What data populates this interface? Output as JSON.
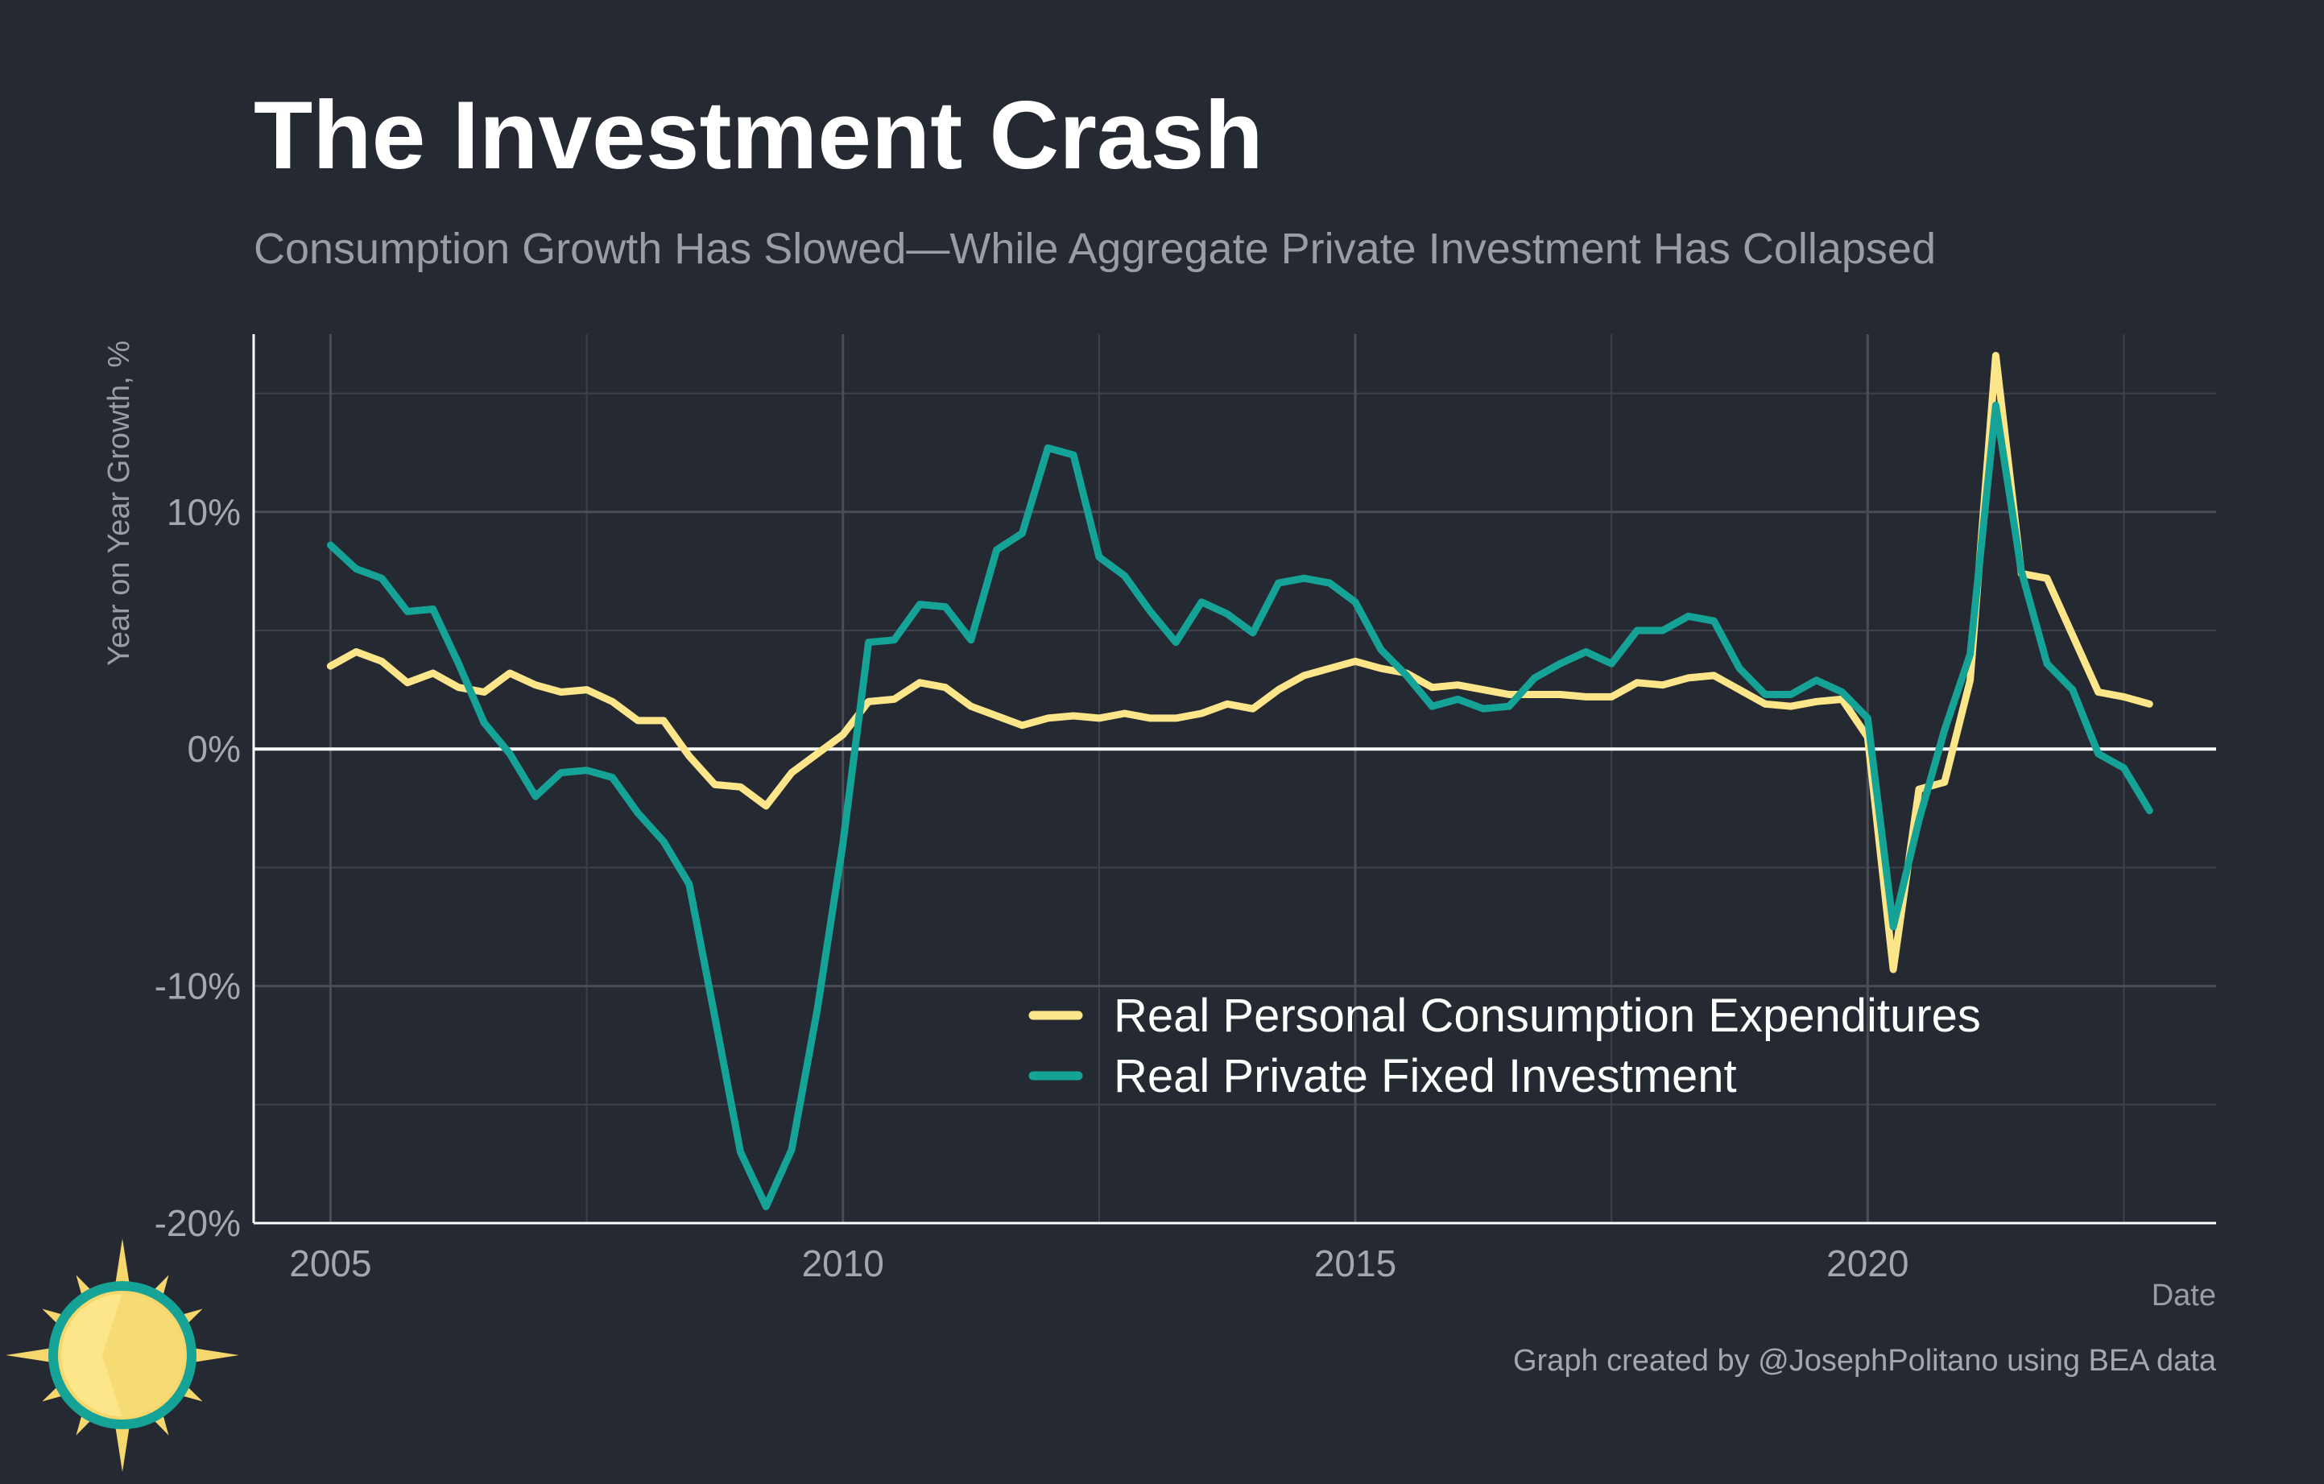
{
  "title": "The Investment Crash",
  "subtitle": "Consumption Growth Has Slowed—While Aggregate Private Investment Has Collapsed",
  "caption": "Graph created by @JosephPolitano using BEA data",
  "logo": {
    "icon": "sun-icon",
    "colors": {
      "ring": "#14a396",
      "sun": "#fde68a",
      "rays": "#f5d76e"
    }
  },
  "chart_data": {
    "type": "line",
    "xlabel": "Date",
    "ylabel": "Year on Year Growth, %",
    "xlim": [
      2004.25,
      2023.4
    ],
    "ylim": [
      -20,
      17.5
    ],
    "x_ticks": [
      2005,
      2010,
      2015,
      2020
    ],
    "x_tick_labels": [
      "2005",
      "2010",
      "2015",
      "2020"
    ],
    "y_ticks": [
      -20,
      -10,
      0,
      10
    ],
    "y_tick_labels": [
      "-20%",
      "-10%",
      "0%",
      "10%"
    ],
    "grid": true,
    "legend_position": "bottom-right",
    "x": [
      2005.0,
      2005.25,
      2005.5,
      2005.75,
      2006.0,
      2006.25,
      2006.5,
      2006.75,
      2007.0,
      2007.25,
      2007.5,
      2007.75,
      2008.0,
      2008.25,
      2008.5,
      2008.75,
      2009.0,
      2009.25,
      2009.5,
      2009.75,
      2010.0,
      2010.25,
      2010.5,
      2010.75,
      2011.0,
      2011.25,
      2011.5,
      2011.75,
      2012.0,
      2012.25,
      2012.5,
      2012.75,
      2013.0,
      2013.25,
      2013.5,
      2013.75,
      2014.0,
      2014.25,
      2014.5,
      2014.75,
      2015.0,
      2015.25,
      2015.5,
      2015.75,
      2016.0,
      2016.25,
      2016.5,
      2016.75,
      2017.0,
      2017.25,
      2017.5,
      2017.75,
      2018.0,
      2018.25,
      2018.5,
      2018.75,
      2019.0,
      2019.25,
      2019.5,
      2019.75,
      2020.0,
      2020.25,
      2020.5,
      2020.75,
      2021.0,
      2021.25,
      2021.5,
      2021.75,
      2022.0,
      2022.25,
      2022.5,
      2022.75
    ],
    "series": [
      {
        "name": "Real Personal Consumption Expenditures",
        "color": "#fde68a",
        "values": [
          3.5,
          4.1,
          3.7,
          2.8,
          3.2,
          2.6,
          2.4,
          3.2,
          2.7,
          2.4,
          2.5,
          2.0,
          1.2,
          1.2,
          -0.3,
          -1.5,
          -1.6,
          -2.4,
          -1.0,
          -0.2,
          0.6,
          2.0,
          2.1,
          2.8,
          2.6,
          1.8,
          1.4,
          1.0,
          1.3,
          1.4,
          1.3,
          1.5,
          1.3,
          1.3,
          1.5,
          1.9,
          1.7,
          2.5,
          3.1,
          3.4,
          3.7,
          3.4,
          3.2,
          2.6,
          2.7,
          2.5,
          2.3,
          2.3,
          2.3,
          2.2,
          2.2,
          2.8,
          2.7,
          3.0,
          3.1,
          2.5,
          1.9,
          1.8,
          2.0,
          2.1,
          0.5,
          -9.3,
          -1.7,
          -1.4,
          2.9,
          16.6,
          7.4,
          7.2,
          4.8,
          2.4,
          2.2,
          1.9
        ]
      },
      {
        "name": "Real Private Fixed Investment",
        "color": "#14a396",
        "values": [
          8.6,
          7.6,
          7.2,
          5.8,
          5.9,
          3.6,
          1.1,
          -0.2,
          -2.0,
          -1.0,
          -0.9,
          -1.2,
          -2.7,
          -3.9,
          -5.7,
          -11.3,
          -17.0,
          -19.3,
          -16.9,
          -11.0,
          -4.0,
          4.5,
          4.6,
          6.1,
          6.0,
          4.6,
          8.4,
          9.1,
          12.7,
          12.4,
          8.1,
          7.3,
          5.8,
          4.5,
          6.2,
          5.7,
          4.9,
          7.0,
          7.2,
          7.0,
          6.2,
          4.2,
          3.1,
          1.8,
          2.1,
          1.7,
          1.8,
          3.0,
          3.6,
          4.1,
          3.6,
          5.0,
          5.0,
          5.6,
          5.4,
          3.4,
          2.3,
          2.3,
          2.9,
          2.4,
          1.3,
          -7.5,
          -3.0,
          0.8,
          4.0,
          14.5,
          7.5,
          3.6,
          2.5,
          -0.2,
          -0.8,
          -2.6
        ]
      }
    ]
  }
}
